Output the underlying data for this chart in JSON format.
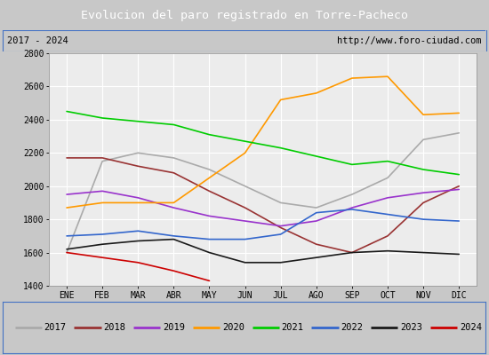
{
  "title": "Evolucion del paro registrado en Torre-Pacheco",
  "title_color": "#ffffff",
  "title_bg": "#4472c4",
  "subtitle_left": "2017 - 2024",
  "subtitle_right": "http://www.foro-ciudad.com",
  "months": [
    "ENE",
    "FEB",
    "MAR",
    "ABR",
    "MAY",
    "JUN",
    "JUL",
    "AGO",
    "SEP",
    "OCT",
    "NOV",
    "DIC"
  ],
  "ylim": [
    1400,
    2800
  ],
  "yticks": [
    1400,
    1600,
    1800,
    2000,
    2200,
    2400,
    2600,
    2800
  ],
  "series": {
    "2017": {
      "color": "#aaaaaa",
      "data": [
        1600,
        2150,
        2200,
        2170,
        2100,
        2000,
        1900,
        1870,
        1950,
        2050,
        2280,
        2320
      ]
    },
    "2018": {
      "color": "#993333",
      "data": [
        2170,
        2170,
        2120,
        2080,
        1970,
        1870,
        1750,
        1650,
        1600,
        1700,
        1900,
        2000
      ]
    },
    "2019": {
      "color": "#9933cc",
      "data": [
        1950,
        1970,
        1930,
        1870,
        1820,
        1790,
        1760,
        1790,
        1870,
        1930,
        1960,
        1980
      ]
    },
    "2020": {
      "color": "#ff9900",
      "data": [
        1870,
        1900,
        1900,
        1900,
        2050,
        2200,
        2520,
        2560,
        2650,
        2660,
        2430,
        2440
      ]
    },
    "2021": {
      "color": "#00cc00",
      "data": [
        2450,
        2410,
        2390,
        2370,
        2310,
        2270,
        2230,
        2180,
        2130,
        2150,
        2100,
        2070
      ]
    },
    "2022": {
      "color": "#3366cc",
      "data": [
        1700,
        1710,
        1730,
        1700,
        1680,
        1680,
        1710,
        1840,
        1860,
        1830,
        1800,
        1790
      ]
    },
    "2023": {
      "color": "#1a1a1a",
      "data": [
        1620,
        1650,
        1670,
        1680,
        1600,
        1540,
        1540,
        1570,
        1600,
        1610,
        1600,
        1590
      ]
    },
    "2024": {
      "color": "#cc0000",
      "data": [
        1600,
        1570,
        1540,
        1490,
        1430,
        null,
        null,
        null,
        null,
        null,
        null,
        null
      ]
    }
  }
}
